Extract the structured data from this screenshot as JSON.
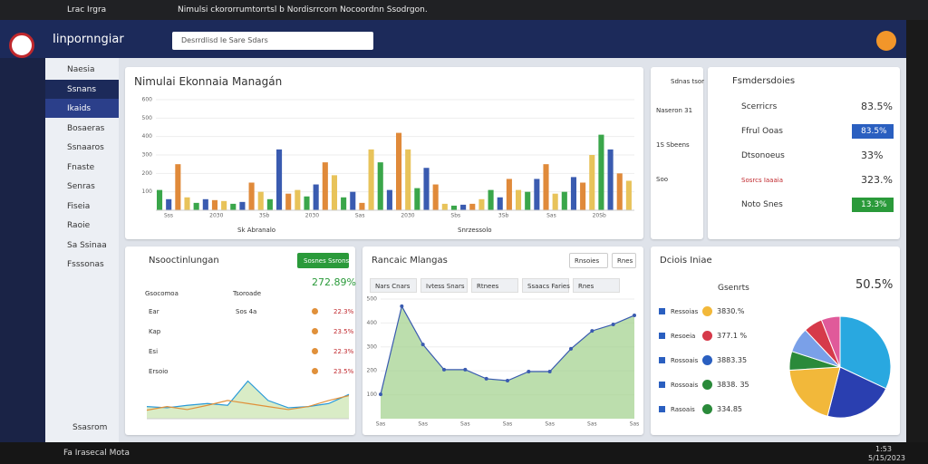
{
  "browser": {
    "tab": "Lrac Irgra",
    "title": "Nimulsi ckororrumtorrtsl b Nordisrrcorn Nocoordnn Ssodrgon."
  },
  "header": {
    "app_name": "Iinpornngiar",
    "search": "Desrrdlisd Ie Sare Sdars"
  },
  "sidebar": {
    "items": [
      "Naesia",
      "Ssnans",
      "Ikaids",
      "Bosaeras",
      "Ssnaaros",
      "Fnaste",
      "Senras",
      "Fiseia",
      "Raoie",
      "Sa Ssinaa",
      "Fsssonas"
    ],
    "footer": "Ssasrom"
  },
  "mini_panel": {
    "title": "Sdnas tsor",
    "items": [
      "Naseron 31",
      "1S Sbeens",
      "Soo"
    ]
  },
  "kpi_panel": {
    "title": "Fsmdersdoies",
    "rows": [
      {
        "label": "Scerricrs",
        "value": "83.5%"
      },
      {
        "label": "Ffrul Ooas",
        "value": "83.5%"
      },
      {
        "label": "Dtsonoeus",
        "value": "33%"
      },
      {
        "label": "Sosrcs Iaaaia",
        "value": "323.%"
      },
      {
        "label": "Noto Snes",
        "value": "13.3%"
      }
    ]
  },
  "trend_panel": {
    "title": "Nsooctinlungan",
    "button": "Sosnes Ssrons",
    "value": "272.89%",
    "legend": [
      "Gsocomoa",
      "Tsoroade"
    ],
    "rows": [
      {
        "label": "Ear",
        "sub": "Sos 4a",
        "value": "22.3%"
      },
      {
        "label": "Kap",
        "value": "23.5%"
      },
      {
        "label": "Esi",
        "value": "22.3%"
      },
      {
        "label": "Ersoio",
        "value": "23.5%"
      }
    ]
  },
  "area_panel": {
    "title": "Rancaic Mlangas",
    "buttons": [
      "Rnsoies",
      "Rnes"
    ],
    "tabs": [
      "Nars Cnars",
      "Ivtess Snars",
      "Rtnees",
      "Ssaacs Faries",
      "Rnes"
    ]
  },
  "dist_panel": {
    "title": "Dciois Iniae",
    "heading": "Gsenrts",
    "total": "50.5%",
    "rows": [
      {
        "label": "Ressoias",
        "value": "3830.%"
      },
      {
        "label": "Resoeia",
        "value": "377.1 %"
      },
      {
        "label": "Rossoais",
        "value": "3883.35"
      },
      {
        "label": "Rossoais",
        "value": "3838. 35"
      },
      {
        "label": "Rasoais",
        "value": "334.85"
      }
    ]
  },
  "taskbar": {
    "app": "Fa Irasecal Mota",
    "time": "1:53",
    "date": "5/15/2023"
  },
  "chart_data": [
    {
      "type": "bar",
      "title": "Nimulai Ekonnaia Managán",
      "x_labels": [
        "Sss",
        "2030",
        "3Sb",
        "2030",
        "Sas",
        "2030",
        "Sbs",
        "3Sb",
        "Sas",
        "20Sb"
      ],
      "axis_labels": [
        "Sk Abranalo",
        "Snrzessolo"
      ],
      "values": [
        110,
        60,
        250,
        70,
        40,
        60,
        55,
        50,
        35,
        45,
        150,
        100,
        60,
        330,
        90,
        110,
        75,
        140,
        260,
        190,
        70,
        100,
        40,
        330,
        260,
        110,
        420,
        330,
        120,
        230,
        140,
        35,
        25,
        30,
        35,
        60,
        110,
        70,
        170,
        110,
        100,
        170,
        250,
        90,
        100,
        180,
        150,
        300,
        410,
        330,
        200,
        160
      ],
      "palette": [
        "#3aa64a",
        "#3a5bb0",
        "#e08a3a",
        "#e8c35a"
      ],
      "ylim": [
        0,
        600
      ],
      "yticks": [
        100,
        200,
        300,
        400,
        500,
        600
      ]
    },
    {
      "type": "line",
      "series": [
        {
          "name": "Gsocomoa",
          "color": "#2a9ad8",
          "values": [
            20,
            18,
            22,
            25,
            22,
            62,
            30,
            18,
            20,
            25,
            40
          ]
        },
        {
          "name": "Tsoroade",
          "color": "#e0903a",
          "values": [
            14,
            20,
            15,
            22,
            30,
            25,
            20,
            15,
            20,
            30,
            38
          ]
        }
      ],
      "ylim": [
        0,
        100
      ]
    },
    {
      "type": "area",
      "values": [
        102,
        470,
        310,
        205,
        205,
        167,
        159,
        197,
        197,
        292,
        367,
        394,
        432
      ],
      "color": "#3a5bb0",
      "ylim": [
        0,
        500
      ],
      "yticks": [
        100,
        200,
        300,
        400,
        500
      ],
      "x_labels": [
        "Sas",
        "Sas",
        "Sas",
        "Sas",
        "Sas",
        "Sas",
        "Sas"
      ]
    },
    {
      "type": "pie",
      "values": [
        32,
        22,
        20,
        6,
        8,
        6,
        6
      ],
      "colors": [
        "#29a8e0",
        "#2a3fb0",
        "#f2b83a",
        "#2a8a3a",
        "#7aa0e8",
        "#d63a4a",
        "#e05a9a"
      ]
    }
  ]
}
